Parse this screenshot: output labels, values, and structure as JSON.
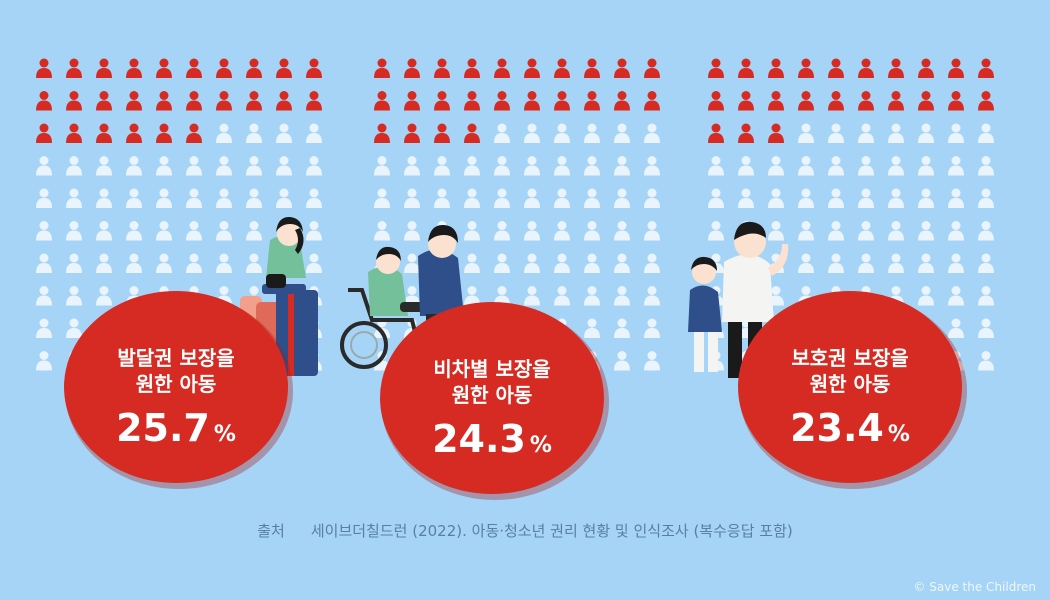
{
  "chart_data": {
    "type": "pictogram",
    "total_icons": 100,
    "colors": {
      "background": "#a6d4f7",
      "filled": "#d62b22",
      "empty": "#eaf4fc",
      "bubble": "#d62b22",
      "bubble_text": "#ffffff"
    },
    "panels": [
      {
        "label_line1": "발달권 보장을",
        "label_line2": "원한 아동",
        "value": 25.7,
        "value_text": "25.7",
        "unit": "%"
      },
      {
        "label_line1": "비차별 보장을",
        "label_line2": "원한 아동",
        "value": 24.3,
        "value_text": "24.3",
        "unit": "%"
      },
      {
        "label_line1": "보호권 보장을",
        "label_line2": "원한 아동",
        "value": 23.4,
        "value_text": "23.4",
        "unit": "%"
      }
    ]
  },
  "source": {
    "label": "출처",
    "text": "세이브더칠드런 (2022). 아동·청소년 권리 현황 및 인식조사 (복수응답 포함)"
  },
  "copyright": "© Save the Children"
}
